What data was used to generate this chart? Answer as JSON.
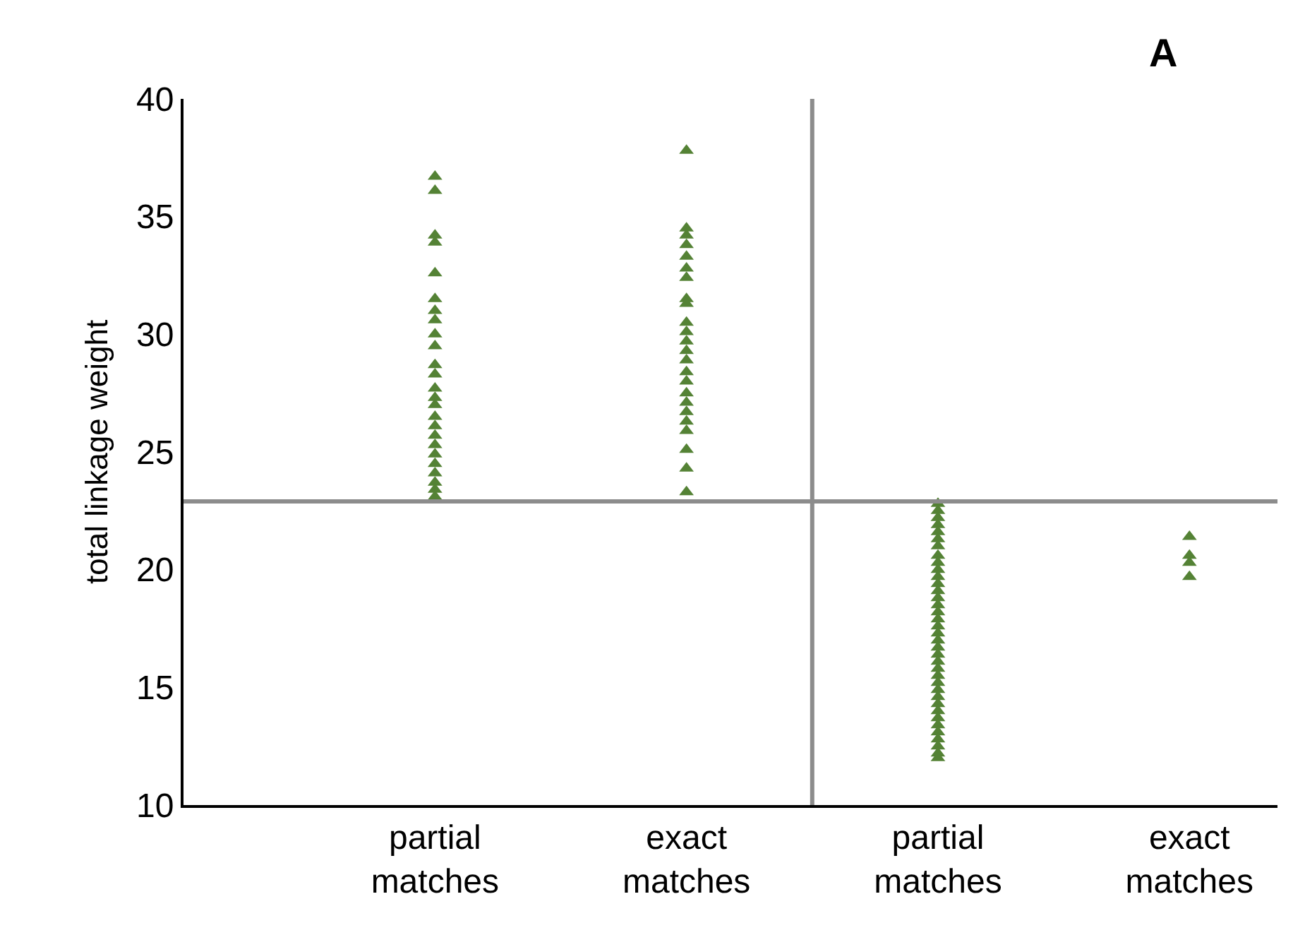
{
  "chart_data": {
    "type": "scatter",
    "ylabel": "total linkage weight",
    "annotations": [
      "A"
    ],
    "ylim": [
      10,
      40
    ],
    "yticks": [
      10,
      15,
      20,
      25,
      30,
      35,
      40
    ],
    "categories": [
      "partial\nmatches",
      "exact\nmatches",
      "partial\nmatches",
      "exact\nmatches"
    ],
    "marker": "triangle",
    "ref_lines": [
      {
        "axis": "y",
        "value": 22.9,
        "color": "#8c8c8c"
      }
    ],
    "series": [
      {
        "color": "#548235",
        "values": [
          36.7,
          37.8,
          22.8,
          21.4
        ]
      },
      {
        "color": "#548235",
        "values": [
          36.1,
          34.5,
          22.5,
          20.6
        ]
      },
      {
        "color": "#548235",
        "values": [
          34.2,
          34.2,
          22.2,
          20.3
        ]
      },
      {
        "color": "#548235",
        "values": [
          33.9,
          33.8,
          21.9,
          19.7
        ]
      },
      {
        "color": "#548235",
        "values": [
          32.6,
          33.3,
          21.6,
          null
        ]
      },
      {
        "color": "#548235",
        "values": [
          31.5,
          32.8,
          21.3,
          null
        ]
      },
      {
        "color": "#548235",
        "values": [
          31.0,
          32.4,
          21.0,
          null
        ]
      },
      {
        "color": "#548235",
        "values": [
          30.6,
          31.5,
          20.6,
          null
        ]
      },
      {
        "color": "#548235",
        "values": [
          30.0,
          31.3,
          20.3,
          null
        ]
      },
      {
        "color": "#548235",
        "values": [
          29.5,
          30.5,
          20.0,
          null
        ]
      },
      {
        "color": "#548235",
        "values": [
          28.7,
          30.1,
          19.7,
          null
        ]
      },
      {
        "color": "#548235",
        "values": [
          28.3,
          29.7,
          19.4,
          null
        ]
      },
      {
        "color": "#548235",
        "values": [
          27.7,
          29.3,
          19.1,
          null
        ]
      },
      {
        "color": "#548235",
        "values": [
          27.3,
          28.9,
          18.8,
          null
        ]
      },
      {
        "color": "#548235",
        "values": [
          27.0,
          28.4,
          18.5,
          null
        ]
      },
      {
        "color": "#548235",
        "values": [
          26.5,
          28.0,
          18.2,
          null
        ]
      },
      {
        "color": "#548235",
        "values": [
          26.1,
          27.5,
          17.9,
          null
        ]
      },
      {
        "color": "#548235",
        "values": [
          25.7,
          27.1,
          17.6,
          null
        ]
      },
      {
        "color": "#548235",
        "values": [
          25.3,
          26.7,
          17.3,
          null
        ]
      },
      {
        "color": "#548235",
        "values": [
          24.9,
          26.3,
          17.0,
          null
        ]
      },
      {
        "color": "#548235",
        "values": [
          24.5,
          25.9,
          16.7,
          null
        ]
      },
      {
        "color": "#548235",
        "values": [
          24.1,
          25.1,
          16.4,
          null
        ]
      },
      {
        "color": "#548235",
        "values": [
          23.7,
          24.3,
          16.1,
          null
        ]
      },
      {
        "color": "#548235",
        "values": [
          23.4,
          23.3,
          15.8,
          null
        ]
      },
      {
        "color": "#548235",
        "values": [
          23.1,
          null,
          15.5,
          null
        ]
      },
      {
        "color": "#548235",
        "values": [
          null,
          null,
          15.2,
          null
        ]
      },
      {
        "color": "#548235",
        "values": [
          null,
          null,
          14.9,
          null
        ]
      },
      {
        "color": "#548235",
        "values": [
          null,
          null,
          14.6,
          null
        ]
      },
      {
        "color": "#548235",
        "values": [
          null,
          null,
          14.3,
          null
        ]
      },
      {
        "color": "#548235",
        "values": [
          null,
          null,
          14.0,
          null
        ]
      },
      {
        "color": "#548235",
        "values": [
          null,
          null,
          13.7,
          null
        ]
      },
      {
        "color": "#548235",
        "values": [
          null,
          null,
          13.4,
          null
        ]
      },
      {
        "color": "#548235",
        "values": [
          null,
          null,
          13.1,
          null
        ]
      },
      {
        "color": "#548235",
        "values": [
          null,
          null,
          12.8,
          null
        ]
      },
      {
        "color": "#548235",
        "values": [
          null,
          null,
          12.5,
          null
        ]
      },
      {
        "color": "#548235",
        "values": [
          null,
          null,
          12.2,
          null
        ]
      },
      {
        "color": "#548235",
        "values": [
          null,
          null,
          12.0,
          null
        ]
      }
    ]
  }
}
